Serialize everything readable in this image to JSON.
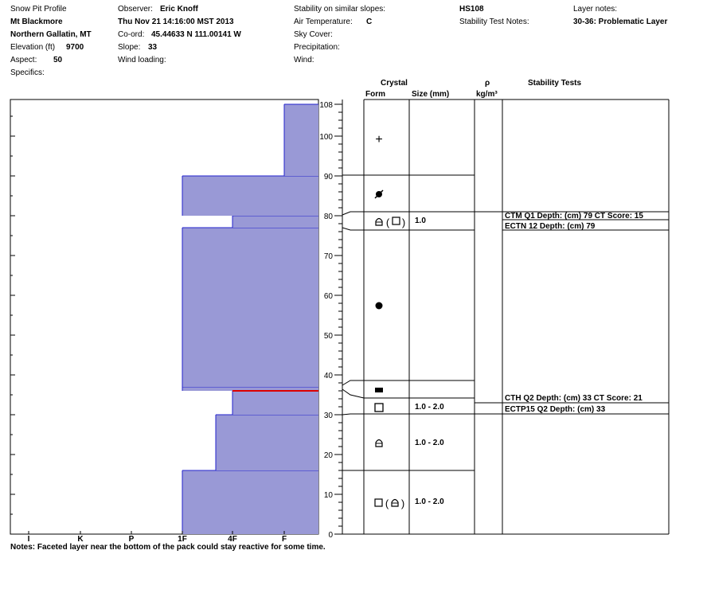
{
  "header": {
    "title": "Snow Pit Profile",
    "location": "Mt Blackmore",
    "range": "Northern Gallatin, MT",
    "elevation_label": "Elevation (ft)",
    "elevation": "9700",
    "aspect_label": "Aspect:",
    "aspect": "50",
    "specifics_label": "Specifics:",
    "observer_label": "Observer:",
    "observer": "Eric Knoff",
    "datetime": "Thu Nov 21 14:16:00 MST 2013",
    "coord_label": "Co-ord:",
    "coord": "45.44633 N 111.00141 W",
    "slope_label": "Slope:",
    "slope": "33",
    "wind_loading_label": "Wind loading:",
    "stability_label": "Stability on similar slopes:",
    "air_temp_label": "Air Temperature:",
    "air_temp_unit": "C",
    "sky_cover_label": "Sky Cover:",
    "precip_label": "Precipitation:",
    "wind_label": "Wind:",
    "hs": "HS108",
    "stability_notes_label": "Stability Test Notes:",
    "layer_notes_label": "Layer notes:",
    "layer_notes": "30-36: Problematic Layer"
  },
  "columns": {
    "crystal": "Crystal",
    "form": "Form",
    "size": "Size (mm)",
    "rho": "ρ",
    "rho_unit": "kg/m³",
    "stability": "Stability Tests"
  },
  "hardness_labels": [
    "I",
    "K",
    "P",
    "1F",
    "4F",
    "F"
  ],
  "depth_ticks": [
    0,
    10,
    20,
    30,
    40,
    50,
    60,
    70,
    80,
    90,
    100,
    108
  ],
  "sizes": [
    "1.0",
    "1.0 - 2.0",
    "1.0 - 2.0",
    "1.0 - 2.0"
  ],
  "stability_tests": [
    "CTM Q1 Depth: (cm) 79 CT Score: 15",
    "ECTN 12  Depth: (cm) 79",
    "CTH Q2 Depth: (cm) 33 CT Score: 21",
    "ECTP15 Q2 Depth: (cm) 33"
  ],
  "notes": "Notes:  Faceted layer near the bottom of the pack could stay reactive for some time.",
  "colors": {
    "fill": "#9999d6",
    "layer_line": "#2222cc",
    "critical_line": "#dd0000"
  },
  "chart_data": {
    "type": "bar",
    "title": "",
    "xlabel": "",
    "ylabel": "",
    "ylim": [
      0,
      108
    ],
    "x_categories": [
      "I",
      "K",
      "P",
      "1F",
      "4F",
      "F"
    ],
    "layers": [
      {
        "bottom": 0,
        "top": 16,
        "hardness": "1F"
      },
      {
        "bottom": 16,
        "top": 30,
        "hardness": "4F-"
      },
      {
        "bottom": 30,
        "top": 36,
        "hardness": "4F"
      },
      {
        "bottom": 36,
        "top": 37,
        "hardness": "1F"
      },
      {
        "bottom": 37,
        "top": 77,
        "hardness": "1F"
      },
      {
        "bottom": 77,
        "top": 80,
        "hardness": "4F"
      },
      {
        "bottom": 80,
        "top": 90,
        "hardness": "1F"
      },
      {
        "bottom": 90,
        "top": 108,
        "hardness": "F"
      }
    ],
    "critical_layer": 36
  }
}
